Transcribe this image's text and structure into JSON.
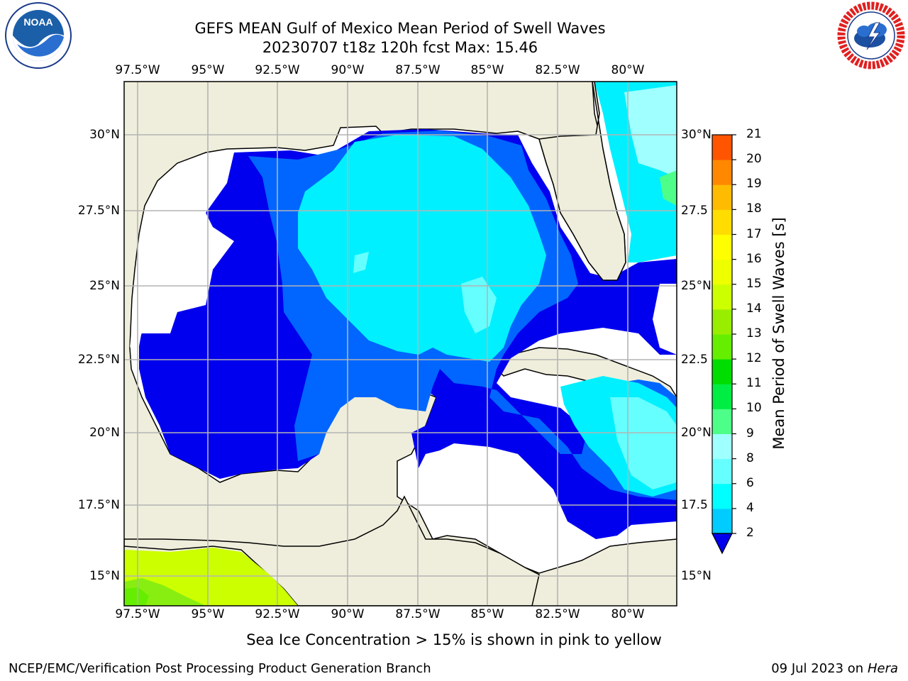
{
  "title": {
    "line1": "GEFS MEAN Gulf of Mexico Mean Period of Swell Waves",
    "line2": "20230707 t18z 120h fcst   Max: 15.46"
  },
  "map": {
    "lon_labels": [
      "97.5°W",
      "95°W",
      "92.5°W",
      "90°W",
      "87.5°W",
      "85°W",
      "82.5°W",
      "80°W"
    ],
    "lat_labels_left": [
      "30°N",
      "27.5°N",
      "25°N",
      "22.5°N",
      "20°N",
      "17.5°N",
      "15°N"
    ],
    "lat_labels_right": [
      "30°N",
      "27.5",
      "25°N",
      "22.5",
      "20°N",
      "17.5",
      "15°N"
    ],
    "colors": {
      "land": "#efeedc",
      "coast": "#000000",
      "grid": "#b4b4b4",
      "nodata": "#ffffff"
    }
  },
  "colorbar": {
    "label": "Mean Period of Swell Waves [s]",
    "ticks": [
      "2",
      "4",
      "6",
      "8",
      "9",
      "10",
      "11",
      "12",
      "13",
      "14",
      "15",
      "16",
      "17",
      "18",
      "19",
      "20",
      "21"
    ],
    "colors": [
      "#0066ff",
      "#00ccff",
      "#00ffff",
      "#66ffff",
      "#a0ffff",
      "#4dff88",
      "#00ee44",
      "#00dd00",
      "#66ee00",
      "#99ee00",
      "#ccff00",
      "#eeff00",
      "#ffff00",
      "#ffdd00",
      "#ffbb00",
      "#ff8800",
      "#ff5500",
      "#ff2200"
    ]
  },
  "note": "Sea Ice Concentration > 15% is shown in pink to yellow",
  "footer": {
    "left": "NCEP/EMC/Verification Post Processing Product Generation Branch",
    "date": "09 Jul 2023 on ",
    "host": "Hera"
  },
  "logos": {
    "noaa_text": "NOAA",
    "nws_text": "NATIONAL WEATHER SERVICE"
  }
}
